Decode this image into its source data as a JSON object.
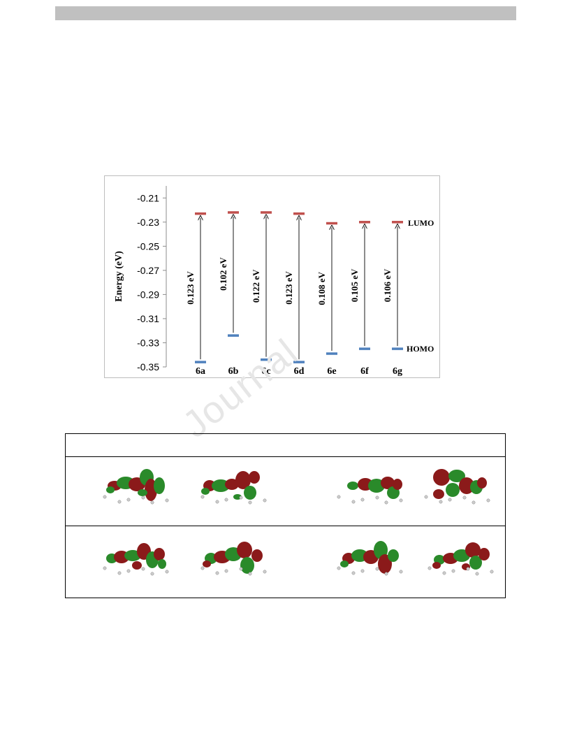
{
  "chart_data": {
    "type": "scatter",
    "title": "",
    "xlabel": "",
    "ylabel": "Energy (eV)",
    "ylim": [
      -0.35,
      -0.2
    ],
    "yticks": [
      "-0.21",
      "-0.23",
      "-0.25",
      "-0.27",
      "-0.29",
      "-0.31",
      "-0.33",
      "-0.35"
    ],
    "ytick_values": [
      -0.21,
      -0.23,
      -0.25,
      -0.27,
      -0.29,
      -0.31,
      -0.33,
      -0.35
    ],
    "categories": [
      "6a",
      "6b",
      "6c",
      "6d",
      "6e",
      "6f",
      "6g"
    ],
    "series": [
      {
        "name": "LUMO",
        "color": "#c0504d",
        "values": [
          -0.223,
          -0.222,
          -0.222,
          -0.223,
          -0.231,
          -0.23,
          -0.23
        ]
      },
      {
        "name": "HOMO",
        "color": "#4f81bd",
        "values": [
          -0.346,
          -0.324,
          -0.344,
          -0.346,
          -0.339,
          -0.335,
          -0.335
        ]
      }
    ],
    "gaps": [
      "0.123 eV",
      "0.102 eV",
      "0.122 eV",
      "0.123 eV",
      "0.108 eV",
      "0.105 eV",
      "0.106 eV"
    ],
    "legend_labels": {
      "lumo": "LUMO",
      "homo": "HOMO"
    },
    "grid": false
  },
  "orbital_table": {
    "rows": 2,
    "cols": 4,
    "colors": {
      "positive": "#8b1a1a",
      "negative": "#2a8a2a",
      "atom": "#cccccc"
    }
  }
}
